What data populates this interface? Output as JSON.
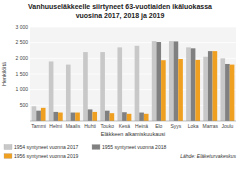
{
  "chart_data": {
    "type": "bar",
    "title": "Vanhuuseläkkeelle siirtyneet 63-vuotiaiden ikäluokassa\nvuosina 2017, 2018 ja 2019",
    "x_label": "Eläkkeen alkamiskuukausi",
    "y_label": "Henkilöitä",
    "source": "Lähde: Eläketurvakeskus",
    "categories": [
      "Tammi",
      "Helmi",
      "Maalis",
      "Huhti",
      "Touko",
      "Kesä",
      "Heinä",
      "Elo",
      "Syys",
      "Loka",
      "Marras",
      "Joulu"
    ],
    "series": [
      {
        "name": "1954 syntyneet vuonna 2017",
        "color": "#c8c8c8",
        "values": [
          470,
          1900,
          1800,
          2200,
          2200,
          2350,
          2400,
          2550,
          2550,
          2350,
          2050,
          2000
        ]
      },
      {
        "name": "1955 syntyneet vuonna 2018",
        "color": "#808080",
        "values": [
          330,
          290,
          270,
          370,
          330,
          280,
          270,
          2520,
          2540,
          2320,
          2230,
          1820
        ]
      },
      {
        "name": "1956 syntyneet vuonna 2019",
        "color": "#f0a020",
        "values": [
          420,
          270,
          270,
          290,
          250,
          230,
          230,
          1940,
          1980,
          1950,
          2230,
          1800
        ]
      }
    ],
    "ylim": [
      0,
      3000
    ],
    "yticks": [
      500,
      {
        "value": 1000,
        "label": "1 000"
      },
      {
        "value": 1500,
        "label": "1 500"
      },
      {
        "value": 2000,
        "label": "2 000"
      },
      {
        "value": 2500,
        "label": "2 500"
      },
      {
        "value": 3000,
        "label": "3 000"
      }
    ],
    "grid": true,
    "legend": "bottom"
  }
}
